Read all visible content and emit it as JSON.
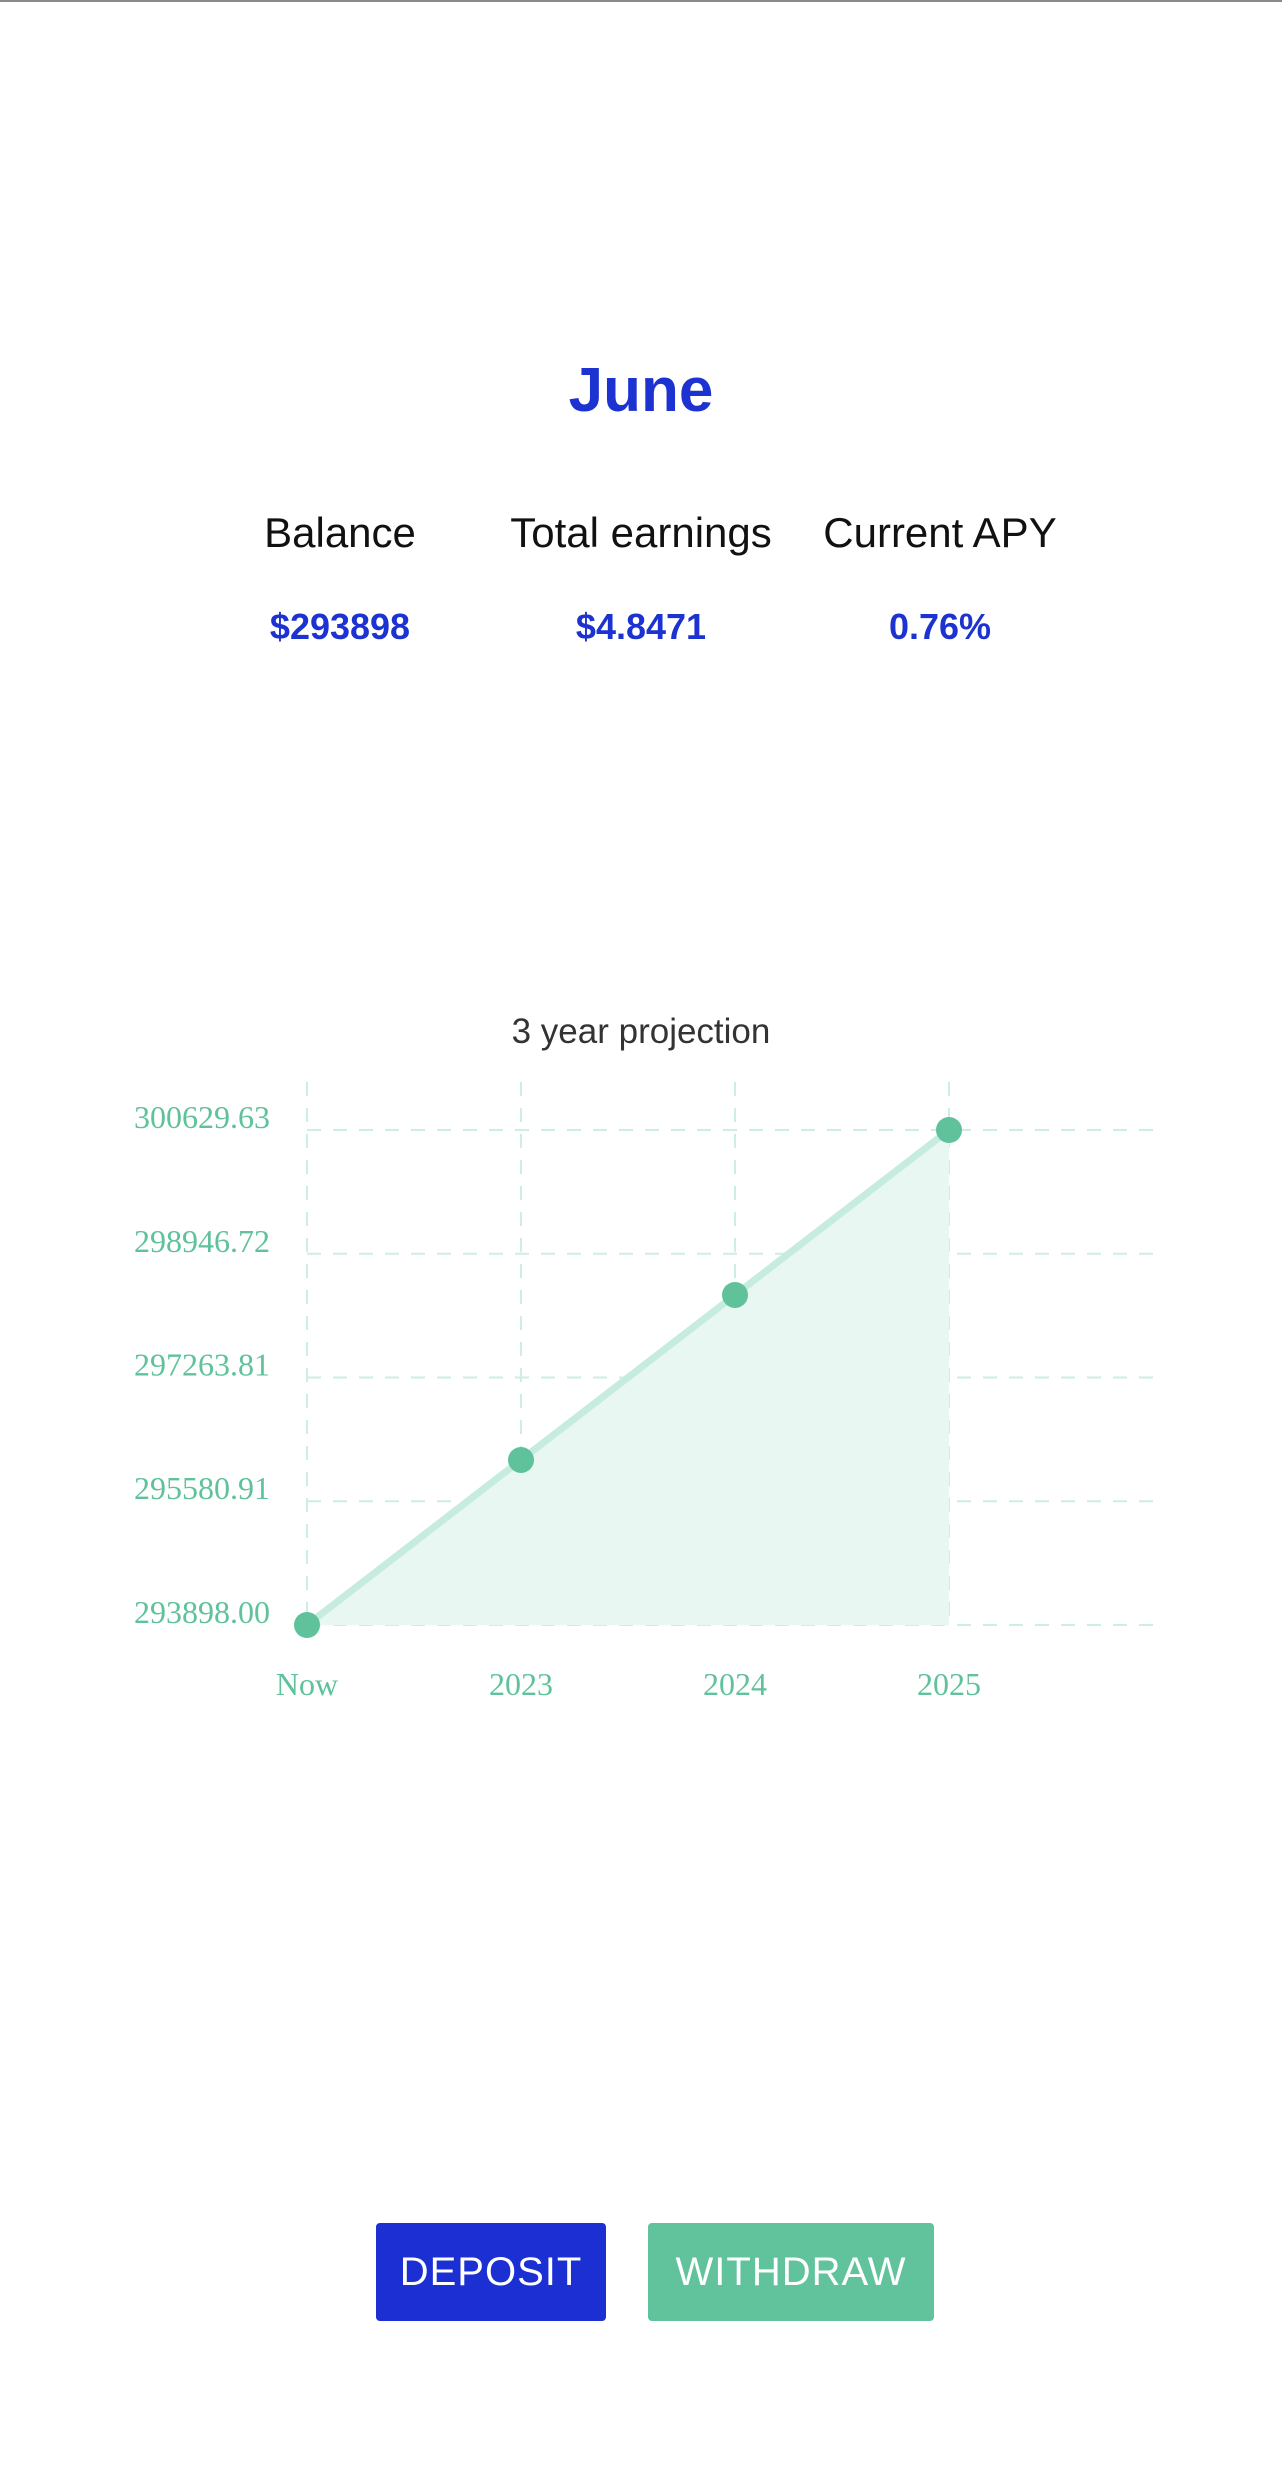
{
  "header": {
    "month": "June"
  },
  "stats": [
    {
      "label": "Balance",
      "value": "$293898"
    },
    {
      "label": "Total earnings",
      "value": "$4.8471"
    },
    {
      "label": "Current APY",
      "value": "0.76%"
    }
  ],
  "chart_title": "3 year projection",
  "chart_data": {
    "type": "area",
    "title": "3 year projection",
    "categories": [
      "Now",
      "2023",
      "2024",
      "2025"
    ],
    "series": [
      {
        "values": [
          293898.0,
          296142.54,
          298386.09,
          300629.63
        ]
      }
    ],
    "yticks": [
      "293898.00",
      "295580.91",
      "297263.81",
      "298946.72",
      "300629.63"
    ],
    "ylim": [
      293898.0,
      300629.63
    ],
    "grid": true,
    "colors": {
      "line": "#c6ecdf",
      "point": "#5fc29a",
      "fill": "#e8f7f1",
      "grid": "#cdeee2",
      "tick": "#5fc29a"
    }
  },
  "buttons": {
    "deposit": "DEPOSIT",
    "withdraw": "WITHDRAW"
  },
  "colors": {
    "accent": "#1c33d1",
    "green": "#60c39c"
  }
}
